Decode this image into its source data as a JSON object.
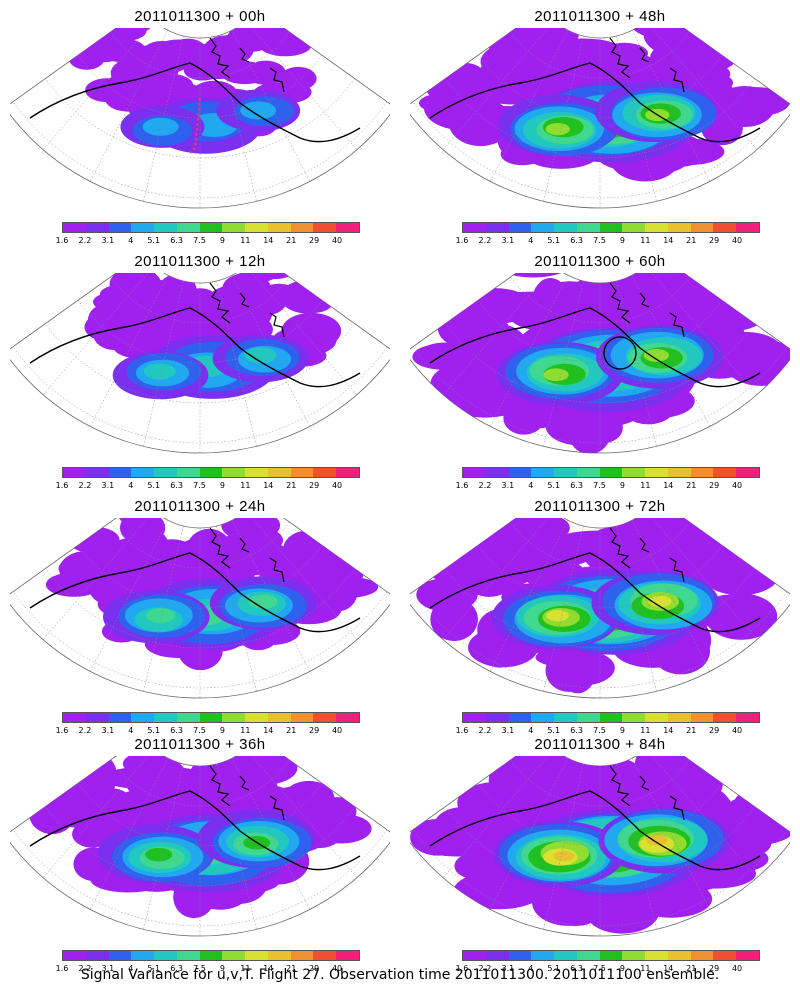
{
  "footer": "Signal Variance for u,v,T. Flight 27. Observation time 2011011300. 2011011100 ensemble.",
  "colorbar": {
    "labels": [
      "1.6",
      "2.2",
      "3.1",
      "4",
      "5.1",
      "6.3",
      "7.5",
      "9",
      "11",
      "14",
      "21",
      "29",
      "40"
    ],
    "colors": [
      "#a020f0",
      "#7a30ee",
      "#3060ee",
      "#20a8f0",
      "#20c8c0",
      "#40d890",
      "#20c020",
      "#90dc30",
      "#d8e030",
      "#e8c030",
      "#f09030",
      "#f05030",
      "#f0207a"
    ]
  },
  "panels": [
    {
      "title": "2011011300 + 00h",
      "intensity": 0.25,
      "coverage": 0.3,
      "marker": "flight-track"
    },
    {
      "title": "2011011300 + 48h",
      "intensity": 0.65,
      "coverage": 0.8,
      "marker": ""
    },
    {
      "title": "2011011300 + 12h",
      "intensity": 0.4,
      "coverage": 0.45,
      "marker": ""
    },
    {
      "title": "2011011300 + 60h",
      "intensity": 0.72,
      "coverage": 0.9,
      "marker": "circle"
    },
    {
      "title": "2011011300 + 24h",
      "intensity": 0.5,
      "coverage": 0.6,
      "marker": ""
    },
    {
      "title": "2011011300 + 72h",
      "intensity": 0.75,
      "coverage": 0.88,
      "marker": ""
    },
    {
      "title": "2011011300 + 36h",
      "intensity": 0.58,
      "coverage": 0.75,
      "marker": ""
    },
    {
      "title": "2011011300 + 84h",
      "intensity": 0.85,
      "coverage": 0.92,
      "marker": ""
    }
  ]
}
